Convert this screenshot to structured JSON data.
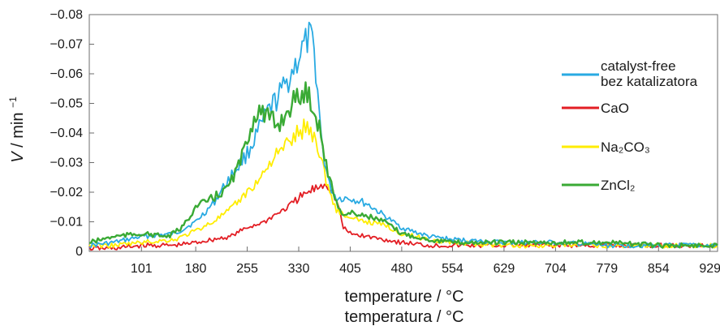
{
  "chart_data": {
    "type": "line",
    "ylabel_var": "V",
    "ylabel_unit": "/ min",
    "ylabel_exp": "−1",
    "xlabel_line1": "temperature / °C",
    "xlabel_line2": "temperatura / °C",
    "xlim": [
      25,
      940
    ],
    "ylim": [
      0,
      -0.08
    ],
    "x_ticks": [
      101,
      180,
      255,
      330,
      405,
      480,
      554,
      629,
      704,
      779,
      854,
      929
    ],
    "x_tick_labels": [
      "101",
      "180",
      "255",
      "330",
      "405",
      "480",
      "554",
      "629",
      "704",
      "779",
      "854",
      "929"
    ],
    "y_ticks": [
      0,
      -0.01,
      -0.02,
      -0.03,
      -0.04,
      -0.05,
      -0.06,
      -0.07,
      -0.08
    ],
    "y_tick_labels": [
      "0",
      "−0.01",
      "−0.02",
      "−0.03",
      "−0.04",
      "−0.05",
      "−0.06",
      "−0.07",
      "−0.08"
    ],
    "grid": false,
    "legend_position": "right",
    "series": [
      {
        "name": "catalyst-free",
        "name_line2": "bez katalizatora",
        "color": "#29aae2",
        "points": [
          [
            25,
            -0.002
          ],
          [
            60,
            -0.003
          ],
          [
            101,
            -0.005
          ],
          [
            150,
            -0.006
          ],
          [
            180,
            -0.01
          ],
          [
            205,
            -0.016
          ],
          [
            230,
            -0.025
          ],
          [
            255,
            -0.033
          ],
          [
            270,
            -0.04
          ],
          [
            285,
            -0.047
          ],
          [
            300,
            -0.052
          ],
          [
            315,
            -0.058
          ],
          [
            325,
            -0.063
          ],
          [
            335,
            -0.068
          ],
          [
            345,
            -0.072
          ],
          [
            350,
            -0.07
          ],
          [
            356,
            -0.06
          ],
          [
            362,
            -0.04
          ],
          [
            368,
            -0.03
          ],
          [
            375,
            -0.022
          ],
          [
            385,
            -0.018
          ],
          [
            405,
            -0.018
          ],
          [
            430,
            -0.016
          ],
          [
            455,
            -0.012
          ],
          [
            480,
            -0.008
          ],
          [
            520,
            -0.005
          ],
          [
            554,
            -0.004
          ],
          [
            629,
            -0.003
          ],
          [
            704,
            -0.003
          ],
          [
            779,
            -0.002
          ],
          [
            854,
            -0.002
          ],
          [
            929,
            -0.002
          ]
        ]
      },
      {
        "name": "CaO",
        "color": "#e31e24",
        "points": [
          [
            25,
            -0.001
          ],
          [
            60,
            -0.001
          ],
          [
            101,
            -0.002
          ],
          [
            150,
            -0.002
          ],
          [
            180,
            -0.003
          ],
          [
            205,
            -0.004
          ],
          [
            230,
            -0.005
          ],
          [
            255,
            -0.008
          ],
          [
            280,
            -0.01
          ],
          [
            300,
            -0.013
          ],
          [
            315,
            -0.015
          ],
          [
            330,
            -0.018
          ],
          [
            345,
            -0.02
          ],
          [
            360,
            -0.022
          ],
          [
            370,
            -0.023
          ],
          [
            380,
            -0.02
          ],
          [
            388,
            -0.015
          ],
          [
            395,
            -0.008
          ],
          [
            405,
            -0.006
          ],
          [
            430,
            -0.005
          ],
          [
            455,
            -0.004
          ],
          [
            480,
            -0.003
          ],
          [
            520,
            -0.002
          ],
          [
            554,
            -0.002
          ],
          [
            629,
            -0.002
          ],
          [
            704,
            -0.002
          ],
          [
            779,
            -0.002
          ],
          [
            854,
            -0.002
          ],
          [
            929,
            -0.002
          ]
        ]
      },
      {
        "name": "Na₂CO₃",
        "color": "#ffed00",
        "points": [
          [
            25,
            -0.002
          ],
          [
            60,
            -0.002
          ],
          [
            101,
            -0.003
          ],
          [
            150,
            -0.004
          ],
          [
            180,
            -0.007
          ],
          [
            205,
            -0.01
          ],
          [
            230,
            -0.014
          ],
          [
            255,
            -0.02
          ],
          [
            275,
            -0.025
          ],
          [
            290,
            -0.031
          ],
          [
            305,
            -0.034
          ],
          [
            320,
            -0.038
          ],
          [
            330,
            -0.04
          ],
          [
            340,
            -0.042
          ],
          [
            350,
            -0.04
          ],
          [
            360,
            -0.034
          ],
          [
            368,
            -0.026
          ],
          [
            375,
            -0.02
          ],
          [
            385,
            -0.014
          ],
          [
            405,
            -0.011
          ],
          [
            430,
            -0.01
          ],
          [
            455,
            -0.009
          ],
          [
            480,
            -0.006
          ],
          [
            520,
            -0.004
          ],
          [
            554,
            -0.003
          ],
          [
            629,
            -0.002
          ],
          [
            704,
            -0.002
          ],
          [
            779,
            -0.002
          ],
          [
            854,
            -0.002
          ],
          [
            929,
            -0.002
          ]
        ]
      },
      {
        "name": "ZnCl₂",
        "color": "#3aaa35",
        "points": [
          [
            25,
            -0.003
          ],
          [
            60,
            -0.005
          ],
          [
            101,
            -0.006
          ],
          [
            140,
            -0.005
          ],
          [
            160,
            -0.008
          ],
          [
            180,
            -0.015
          ],
          [
            205,
            -0.018
          ],
          [
            225,
            -0.021
          ],
          [
            245,
            -0.03
          ],
          [
            260,
            -0.042
          ],
          [
            270,
            -0.048
          ],
          [
            280,
            -0.046
          ],
          [
            290,
            -0.044
          ],
          [
            300,
            -0.043
          ],
          [
            310,
            -0.046
          ],
          [
            320,
            -0.05
          ],
          [
            330,
            -0.052
          ],
          [
            340,
            -0.054
          ],
          [
            350,
            -0.05
          ],
          [
            360,
            -0.042
          ],
          [
            368,
            -0.032
          ],
          [
            375,
            -0.024
          ],
          [
            383,
            -0.018
          ],
          [
            395,
            -0.012
          ],
          [
            405,
            -0.013
          ],
          [
            430,
            -0.012
          ],
          [
            455,
            -0.01
          ],
          [
            480,
            -0.006
          ],
          [
            520,
            -0.004
          ],
          [
            554,
            -0.003
          ],
          [
            629,
            -0.003
          ],
          [
            704,
            -0.003
          ],
          [
            779,
            -0.003
          ],
          [
            854,
            -0.002
          ],
          [
            929,
            -0.002
          ]
        ]
      }
    ]
  }
}
